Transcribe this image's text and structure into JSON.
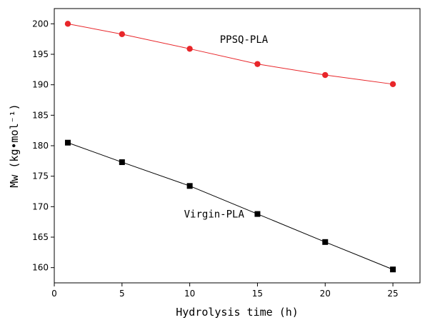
{
  "chart_data": {
    "type": "line",
    "xlabel": "Hydrolysis time (h)",
    "ylabel": "Mw (kg•mol⁻¹)",
    "xlim": [
      0,
      27
    ],
    "ylim": [
      157.5,
      202.5
    ],
    "xticks": [
      0,
      5,
      10,
      15,
      20,
      25
    ],
    "yticks": [
      160,
      165,
      170,
      175,
      180,
      185,
      190,
      195,
      200
    ],
    "grid": false,
    "series": [
      {
        "name": "PPSQ-PLA",
        "color": "#e8262a",
        "marker": "circle",
        "x": [
          1,
          5,
          10,
          15,
          20,
          25
        ],
        "y": [
          200.0,
          198.3,
          195.9,
          193.4,
          191.6,
          190.1
        ]
      },
      {
        "name": "Virgin-PLA",
        "color": "#000000",
        "marker": "square",
        "x": [
          1,
          5,
          10,
          15,
          20,
          25
        ],
        "y": [
          180.5,
          177.3,
          173.4,
          168.8,
          164.2,
          159.7
        ]
      }
    ]
  }
}
